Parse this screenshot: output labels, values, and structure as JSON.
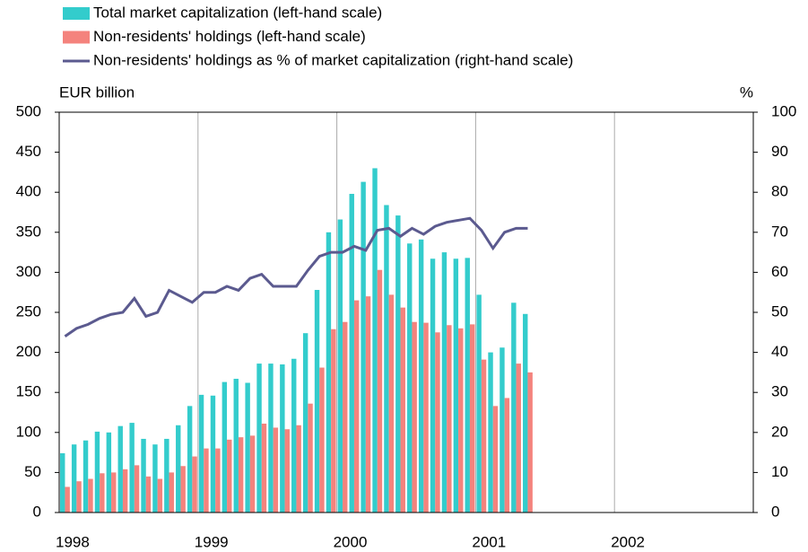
{
  "chart_data": {
    "type": "bar_line",
    "ylabel": "EUR billion",
    "y2label": "%",
    "categories": [
      null,
      null,
      null,
      null,
      null,
      null,
      null,
      null,
      null,
      null,
      null,
      null,
      null,
      null,
      null,
      null,
      null,
      null,
      null,
      null,
      null,
      null,
      null,
      null,
      null,
      null,
      null,
      null,
      null,
      null,
      null,
      null,
      null,
      null,
      null,
      null,
      null,
      null,
      null,
      null,
      null
    ],
    "series": [
      {
        "name": "Total market capitalization (left-hand scale)",
        "color": "#33cccc",
        "kind": "bar",
        "values": [
          74,
          85,
          90,
          101,
          100,
          108,
          112,
          92,
          85,
          92,
          109,
          133,
          147,
          146,
          163,
          167,
          162,
          186,
          186,
          185,
          192,
          224,
          278,
          350,
          366,
          398,
          413,
          430,
          384,
          371,
          336,
          341,
          317,
          325,
          317,
          318,
          272,
          200,
          206,
          262,
          248
        ]
      },
      {
        "name": "Non-residents' holdings (left-hand scale)",
        "color": "#f4837d",
        "kind": "bar",
        "values": [
          32,
          39,
          42,
          49,
          50,
          54,
          59,
          45,
          42,
          50,
          58,
          70,
          80,
          80,
          91,
          94,
          96,
          111,
          106,
          104,
          109,
          136,
          181,
          229,
          238,
          265,
          270,
          303,
          272,
          256,
          238,
          237,
          225,
          234,
          230,
          235,
          191,
          133,
          143,
          186,
          175
        ]
      },
      {
        "name": "Non-residents' holdings as % of market capitalization (right-hand scale)",
        "color": "#5b5a8f",
        "kind": "line",
        "axis": "y2",
        "values": [
          44,
          46,
          47,
          48.5,
          49.5,
          50,
          53.5,
          49,
          50,
          55.5,
          54,
          52.5,
          55,
          55,
          56.5,
          55.5,
          58.5,
          59.5,
          56.5,
          56.5,
          56.5,
          60.5,
          64,
          65,
          65,
          66.5,
          65.5,
          70.5,
          71,
          69,
          71,
          69.5,
          71.5,
          72.5,
          73,
          73.5,
          70.5,
          66,
          70,
          71,
          71
        ]
      }
    ],
    "xlim": [
      1998,
      2003
    ],
    "xticks": [
      1998,
      1999,
      2000,
      2001,
      2002
    ],
    "ylim": [
      0,
      500
    ],
    "yticks": [
      0,
      50,
      100,
      150,
      200,
      250,
      300,
      350,
      400,
      450,
      500
    ],
    "y2lim": [
      0,
      100
    ],
    "y2ticks": [
      0,
      10,
      20,
      30,
      40,
      50,
      60,
      70,
      80,
      90,
      100
    ],
    "grid": true
  }
}
